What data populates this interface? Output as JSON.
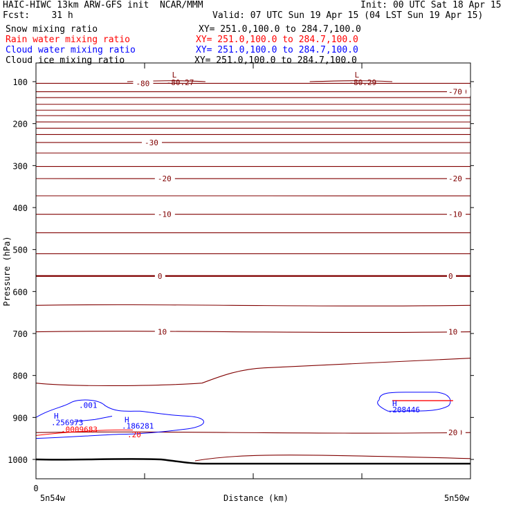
{
  "header": {
    "title": "HAIC-HIWC 13km ARW-GFS init  NCAR/MMM",
    "init": "Init: 00 UTC Sat 18 Apr 15",
    "fcst": "Fcst:    31 h",
    "valid": "Valid: 07 UTC Sun 19 Apr 15 (04 LST Sun 19 Apr 15)",
    "fields": [
      {
        "name": "Snow mixing ratio",
        "xy": "XY= 251.0,100.0 to 284.7,100.0",
        "color": "#000000"
      },
      {
        "name": "Rain water mixing ratio",
        "xy": "XY= 251.0,100.0 to 284.7,100.0",
        "color": "#ff0000"
      },
      {
        "name": "Cloud water mixing ratio",
        "xy": "XY= 251.0,100.0 to 284.7,100.0",
        "color": "#0000ff"
      },
      {
        "name": "Cloud ice mixing ratio",
        "xy": "XY= 251.0,100.0 to 284.7,100.0",
        "color": "#000000"
      }
    ]
  },
  "chart_data": {
    "type": "contour-cross-section",
    "ylabel": "Pressure (hPa)",
    "xlabel": "Distance (km)",
    "x_start_label": "0",
    "x_left_label": "5n54w",
    "x_right_label": "5n50w",
    "y_axis": {
      "scale": "linear",
      "range": [
        1050,
        40
      ],
      "ticks": [
        100,
        200,
        300,
        400,
        500,
        600,
        700,
        800,
        900,
        1000
      ]
    },
    "x_ticks": [
      0,
      0.25,
      0.5,
      0.75,
      1.0
    ],
    "temperature_contours": {
      "color": "#800000",
      "lines": [
        {
          "p": 104,
          "label": "-80",
          "lx": 0.23
        },
        {
          "p": 124,
          "label": "-70",
          "lx": 0.96
        },
        {
          "p": 138
        },
        {
          "p": 154
        },
        {
          "p": 168
        },
        {
          "p": 181
        },
        {
          "p": 196
        },
        {
          "p": 211
        },
        {
          "p": 226
        },
        {
          "p": 245,
          "label": "-30",
          "lx": 0.25
        },
        {
          "p": 270
        },
        {
          "p": 302
        },
        {
          "p": 331,
          "label": "-20",
          "lx": 0.28
        },
        {
          "p": 372
        },
        {
          "p": 416,
          "label": "-10",
          "lx": 0.28
        },
        {
          "p": 460
        },
        {
          "p": 510
        },
        {
          "p": 563,
          "label": "0",
          "lx": 0.28,
          "bold": true
        },
        {
          "p": 633
        },
        {
          "p": 696,
          "label": "10",
          "lx": 0.28
        },
        {
          "p": 772
        },
        {
          "p": 936,
          "label": "20",
          "lx": 0.96
        }
      ],
      "lows": [
        {
          "label": "L",
          "value": "-80.27"
        },
        {
          "label": "L",
          "value": "-80.29"
        }
      ],
      "right_labels": [
        "-70",
        "-20",
        "-10",
        "0",
        "10",
        "20"
      ]
    },
    "cloud_water": {
      "color": "#0000ff",
      "contour_label": ".001",
      "highs": [
        {
          "label": "H",
          "value": ".256973"
        },
        {
          "label": "H",
          "value": ".186281"
        },
        {
          "label": "H",
          "value": ".208446"
        }
      ]
    },
    "rain_water": {
      "color": "#ff0000",
      "values": [
        ".0009683",
        ".20"
      ]
    },
    "terrain": {
      "color": "#000000",
      "pressure_left": 1000,
      "pressure_right": 1010
    }
  }
}
